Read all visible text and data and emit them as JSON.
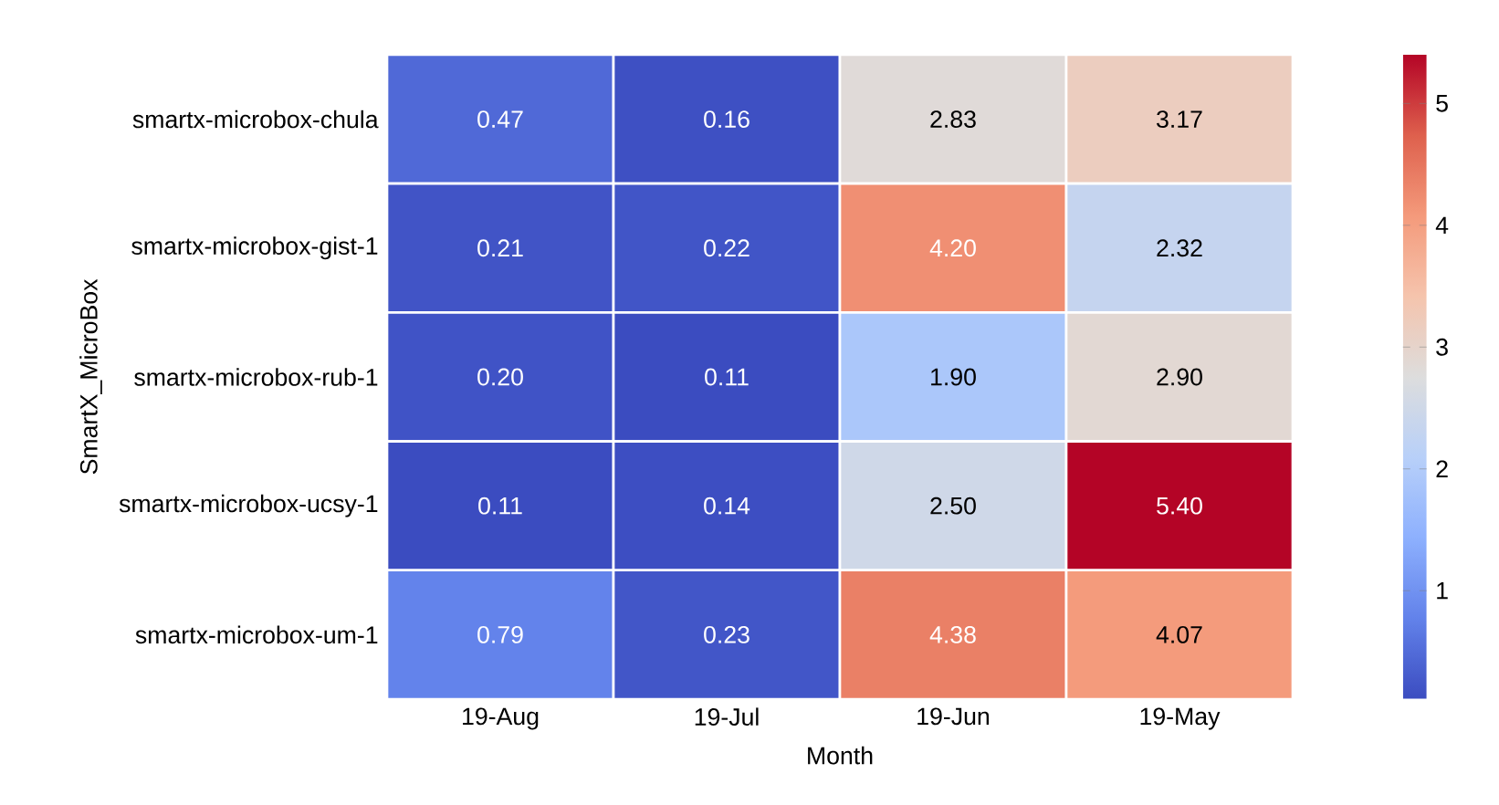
{
  "chart_data": {
    "type": "heatmap",
    "xlabel": "Month",
    "ylabel": "SmartX_MicroBox",
    "categories": [
      "19-Aug",
      "19-Jul",
      "19-Jun",
      "19-May"
    ],
    "y_categories": [
      "smartx-microbox-chula",
      "smartx-microbox-gist-1",
      "smartx-microbox-rub-1",
      "smartx-microbox-ucsy-1",
      "smartx-microbox-um-1"
    ],
    "cells": [
      [
        0.47,
        0.16,
        2.83,
        3.17
      ],
      [
        0.21,
        0.22,
        4.2,
        2.32
      ],
      [
        0.2,
        0.11,
        1.9,
        2.9
      ],
      [
        0.11,
        0.14,
        2.5,
        5.4
      ],
      [
        0.79,
        0.23,
        4.38,
        4.07
      ]
    ],
    "cell_labels": [
      [
        "0.47",
        "0.16",
        "2.83",
        "3.17"
      ],
      [
        "0.21",
        "0.22",
        "4.20",
        "2.32"
      ],
      [
        "0.20",
        "0.11",
        "1.90",
        "2.90"
      ],
      [
        "0.11",
        "0.14",
        "2.50",
        "5.40"
      ],
      [
        "0.79",
        "0.23",
        "4.38",
        "4.07"
      ]
    ],
    "clim": [
      0.11,
      5.4
    ],
    "cticks": [
      1,
      2,
      3,
      4,
      5
    ]
  }
}
